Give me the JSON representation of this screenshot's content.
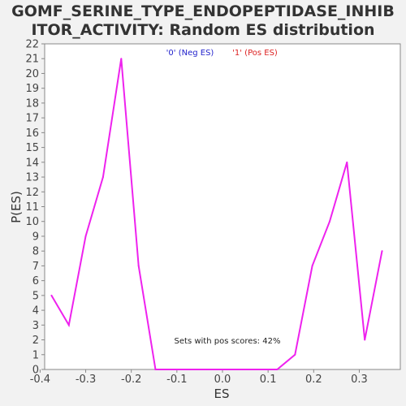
{
  "chart_data": {
    "type": "line",
    "title_line1": "GOMF_SERINE_TYPE_ENDOPEPTIDASE_INHIB",
    "title_line2": "ITOR_ACTIVITY: Random ES distribution",
    "xlabel": "ES",
    "ylabel": "P(ES)",
    "xlim": [
      -0.39,
      0.39
    ],
    "ylim": [
      0,
      22
    ],
    "x_ticks": [
      "-0.4",
      "-0.3",
      "-0.2",
      "-0.1",
      "0.0",
      "0.1",
      "0.2",
      "0.3"
    ],
    "y_ticks": [
      "0",
      "1",
      "2",
      "3",
      "4",
      "5",
      "6",
      "7",
      "8",
      "9",
      "10",
      "11",
      "12",
      "13",
      "14",
      "15",
      "16",
      "17",
      "18",
      "19",
      "20",
      "21",
      "22"
    ],
    "legend": [
      {
        "label": "'0' (Neg ES)",
        "color": "#2222cc"
      },
      {
        "label": "'1' (Pos ES)",
        "color": "#dd2222"
      }
    ],
    "annotation": "Sets with pos scores: 42%",
    "line_color": "#ee22ee",
    "grid": false,
    "series": [
      {
        "x": [
          -0.375,
          -0.337,
          -0.3,
          -0.262,
          -0.222,
          -0.184,
          -0.147,
          -0.109,
          -0.071,
          -0.033,
          0.005,
          0.043,
          0.081,
          0.12,
          0.159,
          0.197,
          0.235,
          0.273,
          0.312,
          0.35
        ],
        "values": [
          5,
          3,
          9,
          13,
          21,
          7,
          0,
          0,
          0,
          0,
          0,
          0,
          0,
          0,
          1,
          7,
          10,
          14,
          2,
          8
        ]
      }
    ]
  }
}
